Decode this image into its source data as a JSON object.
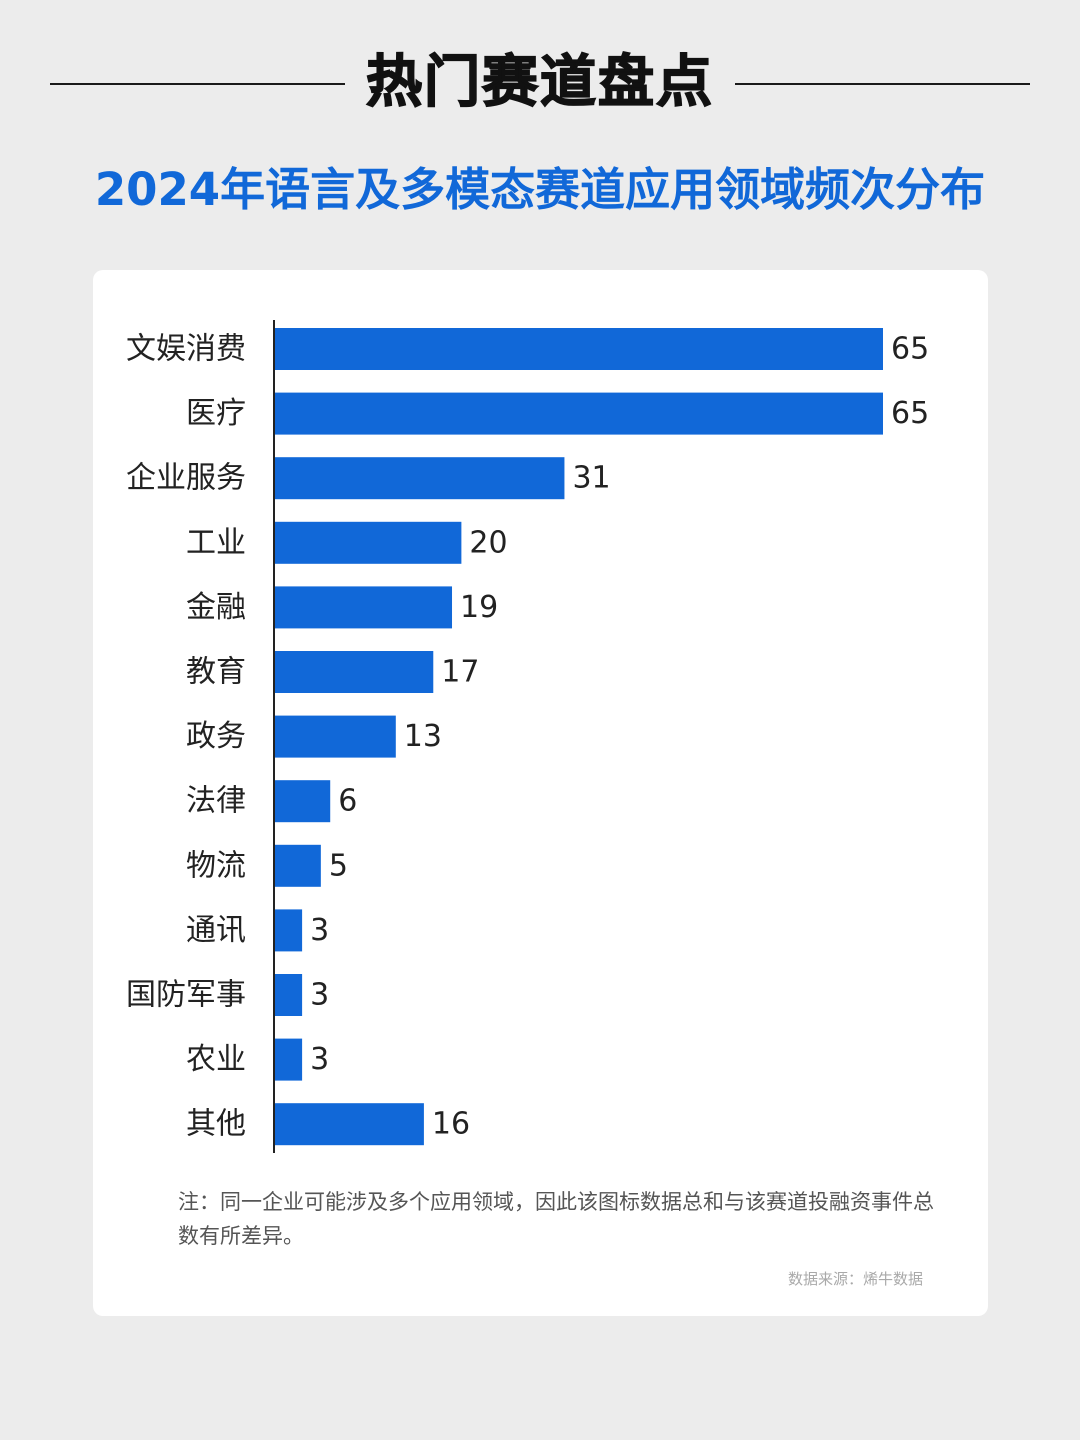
{
  "header": {
    "title": "热门赛道盘点"
  },
  "chart_data": {
    "type": "bar",
    "orientation": "horizontal",
    "title": "2024年语言及多模态赛道应用领域频次分布",
    "categories": [
      "文娱消费",
      "医疗",
      "企业服务",
      "工业",
      "金融",
      "教育",
      "政务",
      "法律",
      "物流",
      "通讯",
      "国防军事",
      "农业",
      "其他"
    ],
    "values": [
      65,
      65,
      31,
      20,
      19,
      17,
      13,
      6,
      5,
      3,
      3,
      3,
      16
    ],
    "xlim": [
      0,
      65
    ],
    "grid": false,
    "legend": "none",
    "bar_color": "#1168d8"
  },
  "note": "注：同一企业可能涉及多个应用领域，因此该图标数据总和与该赛道投融资事件总数有所差异。",
  "source": "数据来源：烯牛数据"
}
